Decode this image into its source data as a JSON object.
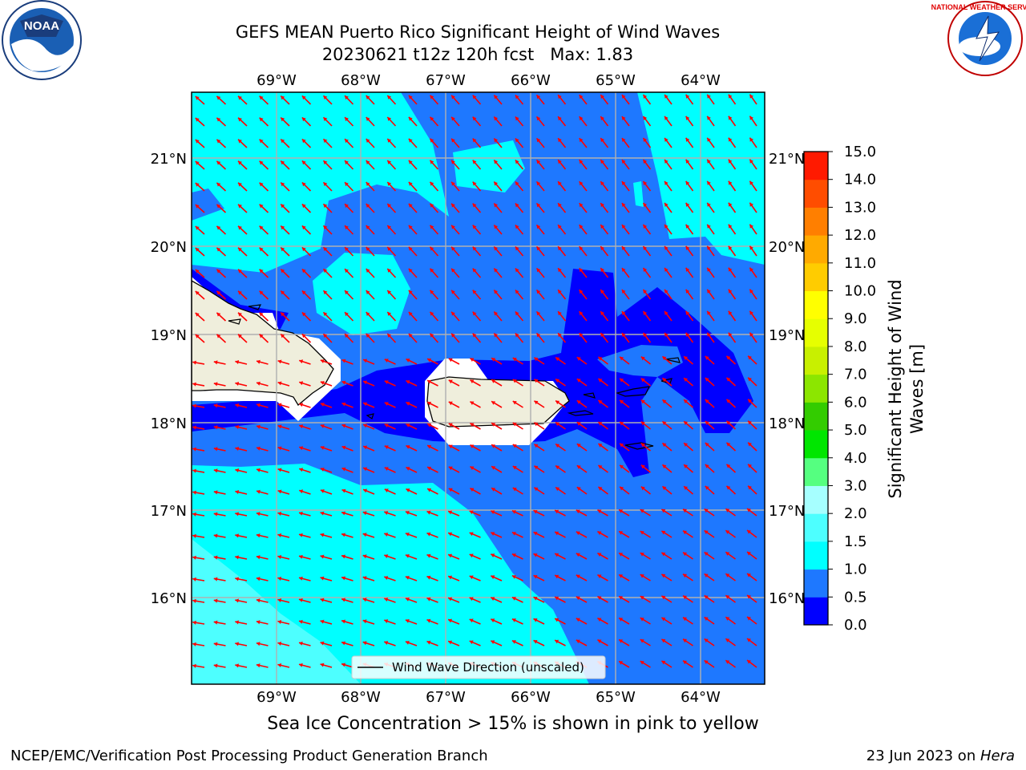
{
  "title_line1": "GEFS MEAN Puerto Rico Significant Height of Wind Waves",
  "title_line2": "20230621 t12z 120h fcst   Max: 1.83",
  "lon_labels": [
    "69°W",
    "68°W",
    "67°W",
    "66°W",
    "65°W",
    "64°W"
  ],
  "lat_labels": [
    "21°N",
    "20°N",
    "19°N",
    "18°N",
    "17°N",
    "16°N"
  ],
  "legend_label": "Wind Wave Direction (unscaled)",
  "colorbar": {
    "label_line1": "Significant Height of Wind",
    "label_line2": "Waves [m]",
    "ticks": [
      "0.0",
      "0.5",
      "1.0",
      "1.5",
      "2.0",
      "3.0",
      "4.0",
      "5.0",
      "6.0",
      "7.0",
      "8.0",
      "9.0",
      "10.0",
      "11.0",
      "12.0",
      "13.0",
      "14.0",
      "15.0"
    ],
    "colors": [
      "#0000ff",
      "#1e78ff",
      "#00ffff",
      "#4dffff",
      "#a6ffff",
      "#55ff80",
      "#00e600",
      "#33cc00",
      "#8ce600",
      "#c8f000",
      "#e6ff00",
      "#ffff00",
      "#ffcc00",
      "#ffaa00",
      "#ff7f00",
      "#ff4d00",
      "#ff1a00"
    ]
  },
  "ice_note": "Sea Ice Concentration > 15% is shown in pink to yellow",
  "footer_left": "NCEP/EMC/Verification Post Processing Product Generation Branch",
  "footer_right_date": "23 Jun 2023 on ",
  "footer_right_host": "Hera",
  "logos": {
    "noaa": "NOAA",
    "nws": "NATIONAL WEATHER SERVICE"
  },
  "colors": {
    "arrow": "#ff0000",
    "land": "#efeedc",
    "frame": "#000000",
    "grid": "#b0b0b0"
  }
}
